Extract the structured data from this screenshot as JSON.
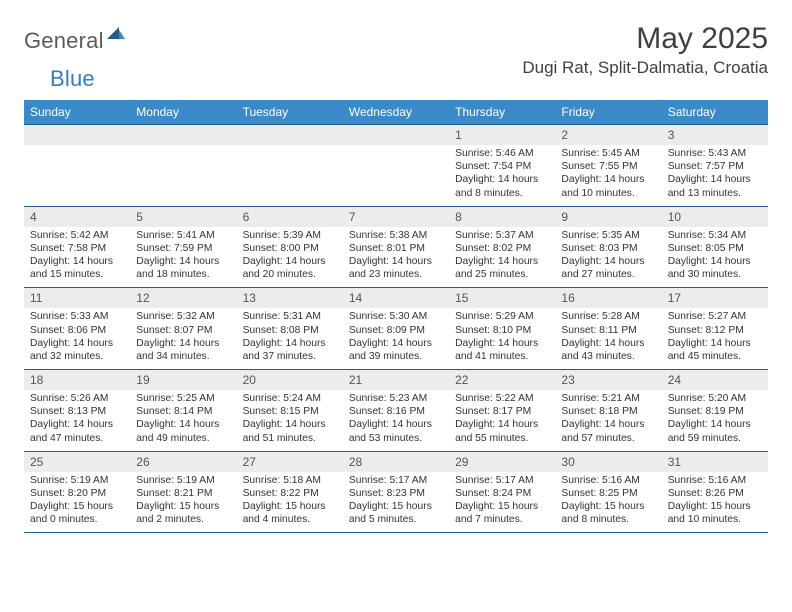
{
  "logo": {
    "word1": "General",
    "word2": "Blue"
  },
  "title": "May 2025",
  "location": "Dugi Rat, Split-Dalmatia, Croatia",
  "colors": {
    "header_bg": "#3a8ac9",
    "header_text": "#ffffff",
    "num_row_bg": "#ececec",
    "rule": "#1f5e8d",
    "body_text": "#333333",
    "logo_gray": "#5c5c5c",
    "logo_blue": "#2f80c2"
  },
  "dow": [
    "Sunday",
    "Monday",
    "Tuesday",
    "Wednesday",
    "Thursday",
    "Friday",
    "Saturday"
  ],
  "weeks": [
    [
      {
        "n": "",
        "l": []
      },
      {
        "n": "",
        "l": []
      },
      {
        "n": "",
        "l": []
      },
      {
        "n": "",
        "l": []
      },
      {
        "n": "1",
        "l": [
          "Sunrise: 5:46 AM",
          "Sunset: 7:54 PM",
          "Daylight: 14 hours",
          "and 8 minutes."
        ]
      },
      {
        "n": "2",
        "l": [
          "Sunrise: 5:45 AM",
          "Sunset: 7:55 PM",
          "Daylight: 14 hours",
          "and 10 minutes."
        ]
      },
      {
        "n": "3",
        "l": [
          "Sunrise: 5:43 AM",
          "Sunset: 7:57 PM",
          "Daylight: 14 hours",
          "and 13 minutes."
        ]
      }
    ],
    [
      {
        "n": "4",
        "l": [
          "Sunrise: 5:42 AM",
          "Sunset: 7:58 PM",
          "Daylight: 14 hours",
          "and 15 minutes."
        ]
      },
      {
        "n": "5",
        "l": [
          "Sunrise: 5:41 AM",
          "Sunset: 7:59 PM",
          "Daylight: 14 hours",
          "and 18 minutes."
        ]
      },
      {
        "n": "6",
        "l": [
          "Sunrise: 5:39 AM",
          "Sunset: 8:00 PM",
          "Daylight: 14 hours",
          "and 20 minutes."
        ]
      },
      {
        "n": "7",
        "l": [
          "Sunrise: 5:38 AM",
          "Sunset: 8:01 PM",
          "Daylight: 14 hours",
          "and 23 minutes."
        ]
      },
      {
        "n": "8",
        "l": [
          "Sunrise: 5:37 AM",
          "Sunset: 8:02 PM",
          "Daylight: 14 hours",
          "and 25 minutes."
        ]
      },
      {
        "n": "9",
        "l": [
          "Sunrise: 5:35 AM",
          "Sunset: 8:03 PM",
          "Daylight: 14 hours",
          "and 27 minutes."
        ]
      },
      {
        "n": "10",
        "l": [
          "Sunrise: 5:34 AM",
          "Sunset: 8:05 PM",
          "Daylight: 14 hours",
          "and 30 minutes."
        ]
      }
    ],
    [
      {
        "n": "11",
        "l": [
          "Sunrise: 5:33 AM",
          "Sunset: 8:06 PM",
          "Daylight: 14 hours",
          "and 32 minutes."
        ]
      },
      {
        "n": "12",
        "l": [
          "Sunrise: 5:32 AM",
          "Sunset: 8:07 PM",
          "Daylight: 14 hours",
          "and 34 minutes."
        ]
      },
      {
        "n": "13",
        "l": [
          "Sunrise: 5:31 AM",
          "Sunset: 8:08 PM",
          "Daylight: 14 hours",
          "and 37 minutes."
        ]
      },
      {
        "n": "14",
        "l": [
          "Sunrise: 5:30 AM",
          "Sunset: 8:09 PM",
          "Daylight: 14 hours",
          "and 39 minutes."
        ]
      },
      {
        "n": "15",
        "l": [
          "Sunrise: 5:29 AM",
          "Sunset: 8:10 PM",
          "Daylight: 14 hours",
          "and 41 minutes."
        ]
      },
      {
        "n": "16",
        "l": [
          "Sunrise: 5:28 AM",
          "Sunset: 8:11 PM",
          "Daylight: 14 hours",
          "and 43 minutes."
        ]
      },
      {
        "n": "17",
        "l": [
          "Sunrise: 5:27 AM",
          "Sunset: 8:12 PM",
          "Daylight: 14 hours",
          "and 45 minutes."
        ]
      }
    ],
    [
      {
        "n": "18",
        "l": [
          "Sunrise: 5:26 AM",
          "Sunset: 8:13 PM",
          "Daylight: 14 hours",
          "and 47 minutes."
        ]
      },
      {
        "n": "19",
        "l": [
          "Sunrise: 5:25 AM",
          "Sunset: 8:14 PM",
          "Daylight: 14 hours",
          "and 49 minutes."
        ]
      },
      {
        "n": "20",
        "l": [
          "Sunrise: 5:24 AM",
          "Sunset: 8:15 PM",
          "Daylight: 14 hours",
          "and 51 minutes."
        ]
      },
      {
        "n": "21",
        "l": [
          "Sunrise: 5:23 AM",
          "Sunset: 8:16 PM",
          "Daylight: 14 hours",
          "and 53 minutes."
        ]
      },
      {
        "n": "22",
        "l": [
          "Sunrise: 5:22 AM",
          "Sunset: 8:17 PM",
          "Daylight: 14 hours",
          "and 55 minutes."
        ]
      },
      {
        "n": "23",
        "l": [
          "Sunrise: 5:21 AM",
          "Sunset: 8:18 PM",
          "Daylight: 14 hours",
          "and 57 minutes."
        ]
      },
      {
        "n": "24",
        "l": [
          "Sunrise: 5:20 AM",
          "Sunset: 8:19 PM",
          "Daylight: 14 hours",
          "and 59 minutes."
        ]
      }
    ],
    [
      {
        "n": "25",
        "l": [
          "Sunrise: 5:19 AM",
          "Sunset: 8:20 PM",
          "Daylight: 15 hours",
          "and 0 minutes."
        ]
      },
      {
        "n": "26",
        "l": [
          "Sunrise: 5:19 AM",
          "Sunset: 8:21 PM",
          "Daylight: 15 hours",
          "and 2 minutes."
        ]
      },
      {
        "n": "27",
        "l": [
          "Sunrise: 5:18 AM",
          "Sunset: 8:22 PM",
          "Daylight: 15 hours",
          "and 4 minutes."
        ]
      },
      {
        "n": "28",
        "l": [
          "Sunrise: 5:17 AM",
          "Sunset: 8:23 PM",
          "Daylight: 15 hours",
          "and 5 minutes."
        ]
      },
      {
        "n": "29",
        "l": [
          "Sunrise: 5:17 AM",
          "Sunset: 8:24 PM",
          "Daylight: 15 hours",
          "and 7 minutes."
        ]
      },
      {
        "n": "30",
        "l": [
          "Sunrise: 5:16 AM",
          "Sunset: 8:25 PM",
          "Daylight: 15 hours",
          "and 8 minutes."
        ]
      },
      {
        "n": "31",
        "l": [
          "Sunrise: 5:16 AM",
          "Sunset: 8:26 PM",
          "Daylight: 15 hours",
          "and 10 minutes."
        ]
      }
    ]
  ]
}
